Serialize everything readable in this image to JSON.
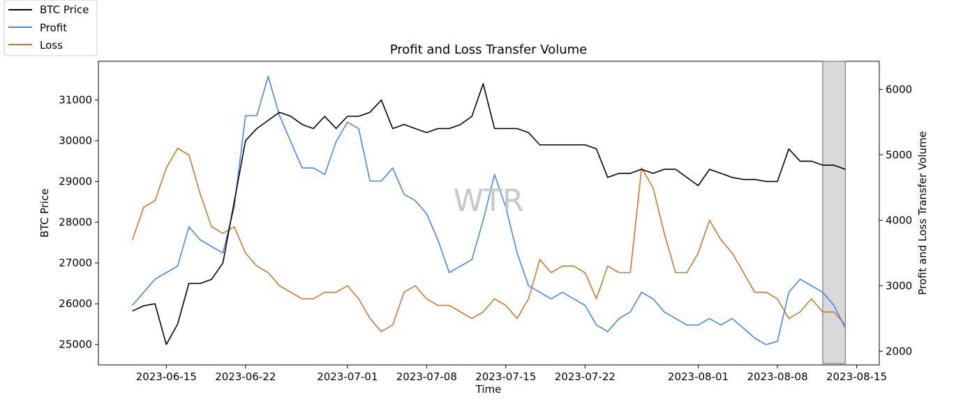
{
  "chart_data": {
    "type": "line",
    "title": "Profit and Loss Transfer Volume",
    "xlabel": "Time",
    "ylabel_left": "BTC Price",
    "ylabel_right": "Profit and Loss Transfer Volume",
    "watermark": "WTR",
    "x_ticks": [
      "2023-06-15",
      "2023-06-22",
      "2023-07-01",
      "2023-07-08",
      "2023-07-15",
      "2023-07-22",
      "2023-08-01",
      "2023-08-08",
      "2023-08-15"
    ],
    "y_left_ticks": [
      25000,
      26000,
      27000,
      28000,
      29000,
      30000,
      31000
    ],
    "y_right_ticks": [
      2000,
      3000,
      4000,
      5000,
      6000
    ],
    "x_range": [
      "2023-06-09",
      "2023-08-17"
    ],
    "ylim_left": [
      24500,
      31950
    ],
    "ylim_right": [
      1790,
      6430
    ],
    "highlight_range": [
      "2023-08-12",
      "2023-08-14"
    ],
    "legend": {
      "placement": "top-left",
      "entries": [
        "BTC Price",
        "Profit",
        "Loss"
      ]
    },
    "colors": {
      "btc": "#000000",
      "profit": "#4a86e8",
      "loss": "#c87a33",
      "highlight": "#d9d9d9"
    },
    "x_dates": [
      "2023-06-12",
      "2023-06-13",
      "2023-06-14",
      "2023-06-15",
      "2023-06-16",
      "2023-06-17",
      "2023-06-18",
      "2023-06-19",
      "2023-06-20",
      "2023-06-21",
      "2023-06-22",
      "2023-06-23",
      "2023-06-24",
      "2023-06-25",
      "2023-06-26",
      "2023-06-27",
      "2023-06-28",
      "2023-06-29",
      "2023-06-30",
      "2023-07-01",
      "2023-07-02",
      "2023-07-03",
      "2023-07-04",
      "2023-07-05",
      "2023-07-06",
      "2023-07-07",
      "2023-07-08",
      "2023-07-09",
      "2023-07-10",
      "2023-07-11",
      "2023-07-12",
      "2023-07-13",
      "2023-07-14",
      "2023-07-15",
      "2023-07-16",
      "2023-07-17",
      "2023-07-18",
      "2023-07-19",
      "2023-07-20",
      "2023-07-21",
      "2023-07-22",
      "2023-07-23",
      "2023-07-24",
      "2023-07-25",
      "2023-07-26",
      "2023-07-27",
      "2023-07-28",
      "2023-07-29",
      "2023-07-30",
      "2023-07-31",
      "2023-08-01",
      "2023-08-02",
      "2023-08-03",
      "2023-08-04",
      "2023-08-05",
      "2023-08-06",
      "2023-08-07",
      "2023-08-08",
      "2023-08-09",
      "2023-08-10",
      "2023-08-11",
      "2023-08-12",
      "2023-08-13",
      "2023-08-14"
    ],
    "series": [
      {
        "name": "BTC Price",
        "axis": "left",
        "values": [
          25820,
          25950,
          26000,
          25000,
          25500,
          26500,
          26500,
          26600,
          27000,
          28500,
          30000,
          30300,
          30500,
          30700,
          30600,
          30400,
          30300,
          30600,
          30300,
          30600,
          30600,
          30700,
          31000,
          30300,
          30400,
          30300,
          30200,
          30300,
          30300,
          30400,
          30600,
          31400,
          30300,
          30300,
          30300,
          30200,
          29900,
          29900,
          29900,
          29900,
          29900,
          29800,
          29100,
          29200,
          29200,
          29300,
          29200,
          29300,
          29300,
          29100,
          28900,
          29300,
          29200,
          29100,
          29050,
          29050,
          29000,
          29000,
          29800,
          29500,
          29500,
          29400,
          29400,
          29300
        ]
      },
      {
        "name": "Profit",
        "axis": "right",
        "values": [
          2700,
          2900,
          3100,
          3200,
          3300,
          3900,
          3700,
          3600,
          3500,
          4200,
          5600,
          5600,
          6200,
          5600,
          5200,
          4800,
          4800,
          4700,
          5200,
          5500,
          5400,
          4600,
          4600,
          4800,
          4400,
          4300,
          4100,
          3700,
          3200,
          3300,
          3400,
          4000,
          4700,
          4200,
          3500,
          3000,
          2900,
          2800,
          2900,
          2800,
          2700,
          2400,
          2300,
          2500,
          2600,
          2900,
          2800,
          2600,
          2500,
          2400,
          2400,
          2500,
          2400,
          2500,
          2350,
          2200,
          2100,
          2150,
          2900,
          3100,
          3000,
          2900,
          2700,
          2350
        ]
      },
      {
        "name": "Loss",
        "axis": "right",
        "values": [
          3700,
          4200,
          4300,
          4800,
          5100,
          5000,
          4400,
          3900,
          3800,
          3900,
          3500,
          3300,
          3200,
          3000,
          2900,
          2800,
          2800,
          2900,
          2900,
          3000,
          2800,
          2500,
          2300,
          2400,
          2900,
          3000,
          2800,
          2700,
          2700,
          2600,
          2500,
          2600,
          2800,
          2700,
          2500,
          2800,
          3400,
          3200,
          3300,
          3300,
          3200,
          2800,
          3300,
          3200,
          3200,
          4800,
          4500,
          3800,
          3200,
          3200,
          3500,
          4000,
          3700,
          3500,
          3200,
          2900,
          2900,
          2800,
          2500,
          2600,
          2800,
          2600,
          2600,
          2400
        ]
      }
    ]
  }
}
